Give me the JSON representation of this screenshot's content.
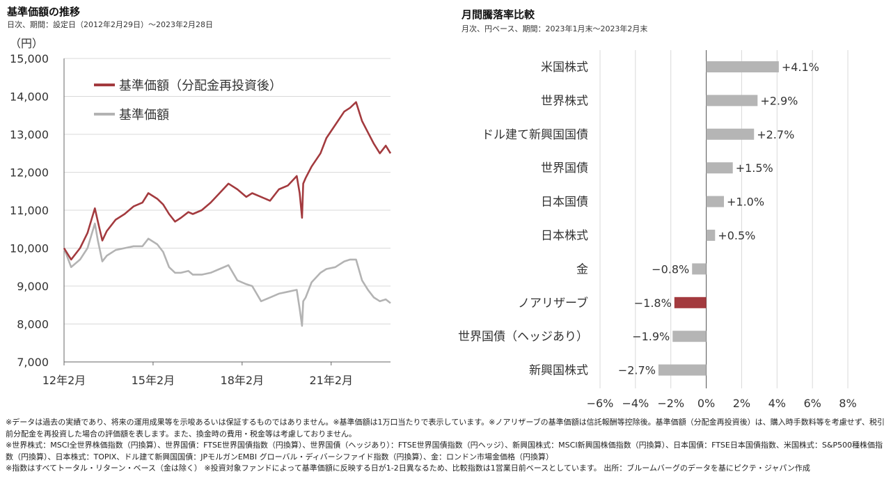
{
  "left_title": "基準価額の推移",
  "left_subtitle": "日次、期間：設定日（2012年2月29日）～2023年2月28日",
  "right_title": "月間騰落率比較",
  "right_subtitle": "月次、円ベース、期間：2023年1月末～2023年2月末",
  "colors": {
    "reinvested": "#a33a3e",
    "nav": "#b3b3b3",
    "bar_default": "#b5b5b5",
    "bar_highlight": "#a33a3e",
    "grid": "#d9d9d9"
  },
  "chart_data": [
    {
      "type": "line",
      "unit_label": "（円）",
      "ylim": [
        7000,
        15000
      ],
      "yticks": [
        "7,000",
        "8,000",
        "9,000",
        "10,000",
        "11,000",
        "12,000",
        "13,000",
        "14,000",
        "15,000"
      ],
      "yticks_values": [
        7000,
        8000,
        9000,
        10000,
        11000,
        12000,
        13000,
        14000,
        15000
      ],
      "xlim": [
        2012.16,
        2023.16
      ],
      "xticks": [
        "12年2月",
        "15年2月",
        "18年2月",
        "21年2月"
      ],
      "xticks_values": [
        2012.16,
        2015.16,
        2018.16,
        2021.16
      ],
      "grid": "horizontal",
      "legend_position": "top-left",
      "series": [
        {
          "name": "基準価額（分配金再投資後）",
          "color_key": "reinvested",
          "x": [
            2012.16,
            2012.4,
            2012.7,
            2012.95,
            2013.2,
            2013.3,
            2013.45,
            2013.6,
            2013.9,
            2014.2,
            2014.5,
            2014.8,
            2015.0,
            2015.3,
            2015.5,
            2015.7,
            2015.9,
            2016.1,
            2016.35,
            2016.5,
            2016.8,
            2017.1,
            2017.4,
            2017.7,
            2018.0,
            2018.3,
            2018.5,
            2018.8,
            2019.1,
            2019.4,
            2019.7,
            2020.0,
            2020.1,
            2020.18,
            2020.22,
            2020.3,
            2020.5,
            2020.8,
            2021.0,
            2021.3,
            2021.6,
            2021.8,
            2022.0,
            2022.2,
            2022.4,
            2022.6,
            2022.8,
            2023.0,
            2023.16
          ],
          "values": [
            10000,
            9700,
            10000,
            10400,
            11050,
            10700,
            10200,
            10450,
            10750,
            10900,
            11100,
            11200,
            11450,
            11300,
            11150,
            10900,
            10700,
            10800,
            10950,
            10900,
            11000,
            11200,
            11450,
            11700,
            11550,
            11350,
            11450,
            11350,
            11250,
            11550,
            11650,
            11900,
            11450,
            10800,
            11700,
            11850,
            12150,
            12500,
            12900,
            13250,
            13600,
            13700,
            13850,
            13350,
            13050,
            12750,
            12500,
            12700,
            12500
          ]
        },
        {
          "name": "基準価額",
          "color_key": "nav",
          "x": [
            2012.16,
            2012.4,
            2012.7,
            2012.95,
            2013.2,
            2013.3,
            2013.45,
            2013.6,
            2013.9,
            2014.2,
            2014.5,
            2014.8,
            2015.0,
            2015.3,
            2015.5,
            2015.7,
            2015.9,
            2016.1,
            2016.35,
            2016.5,
            2016.8,
            2017.1,
            2017.4,
            2017.7,
            2018.0,
            2018.3,
            2018.5,
            2018.8,
            2019.1,
            2019.4,
            2019.7,
            2020.0,
            2020.1,
            2020.18,
            2020.22,
            2020.3,
            2020.5,
            2020.8,
            2021.0,
            2021.3,
            2021.6,
            2021.8,
            2022.0,
            2022.2,
            2022.4,
            2022.6,
            2022.8,
            2023.0,
            2023.16
          ],
          "values": [
            10000,
            9500,
            9700,
            10000,
            10650,
            10200,
            9650,
            9800,
            9950,
            10000,
            10050,
            10050,
            10250,
            10100,
            9900,
            9500,
            9350,
            9350,
            9400,
            9300,
            9300,
            9350,
            9450,
            9550,
            9150,
            9050,
            9000,
            8600,
            8700,
            8800,
            8850,
            8900,
            8400,
            7950,
            8600,
            8700,
            9100,
            9350,
            9450,
            9500,
            9650,
            9700,
            9700,
            9150,
            8900,
            8700,
            8600,
            8650,
            8550
          ]
        }
      ]
    },
    {
      "type": "bar",
      "orientation": "horizontal",
      "categories": [
        "米国株式",
        "世界株式",
        "ドル建て新興国国債",
        "世界国債",
        "日本国債",
        "日本株式",
        "金",
        "ノアリザーブ",
        "世界国債（ヘッジあり）",
        "新興国株式"
      ],
      "values": [
        4.1,
        2.9,
        2.7,
        1.5,
        1.0,
        0.5,
        -0.8,
        -1.8,
        -1.9,
        -2.7
      ],
      "labels": [
        "+4.1%",
        "+2.9%",
        "+2.7%",
        "+1.5%",
        "+1.0%",
        "+0.5%",
        "−0.8%",
        "−1.8%",
        "−1.9%",
        "−2.7%"
      ],
      "highlight_index": 7,
      "xlim": [
        -6,
        8
      ],
      "xticks": [
        "−6%",
        "−4%",
        "−2%",
        "0%",
        "2%",
        "4%",
        "6%",
        "8%"
      ],
      "xticks_values": [
        -6,
        -4,
        -2,
        0,
        2,
        4,
        6,
        8
      ],
      "grid": "vertical"
    }
  ],
  "notes": [
    "※データは過去の実績であり、将来の運用成果等を示唆あるいは保証するものではありません。※基準価額は1万口当たりで表示しています。※ノアリザーブの基準価額は信託報酬等控除後。基準価額（分配金再投資後）は、購入時手数料等を考慮せず、税引前分配金を再投資した場合の評価額を表します。また、換金時の費用・税金等は考慮しておりません。",
    "※世界株式：MSCI全世界株価指数（円換算）、世界国債：FTSE世界国債指数（円換算）、世界国債（ヘッジあり）：FTSE世界国債指数（円ヘッジ）、新興国株式：MSCI新興国株価指数（円換算）、日本国債：FTSE日本国債指数、米国株式：S&P500種株価指数（円換算）、日本株式：TOPIX、ドル建て新興国国債：JPモルガンEMBI グローバル・ディバーシファイド指数（円換算）、金：ロンドン市場金価格（円換算）",
    "※指数はすべてトータル・リターン・ベース（金は除く） ※投資対象ファンドによって基準価額に反映する日が1-2日異なるため、比較指数は1営業日前ベースとしています。 出所：ブルームバーグのデータを基にピクテ・ジャパン作成"
  ]
}
